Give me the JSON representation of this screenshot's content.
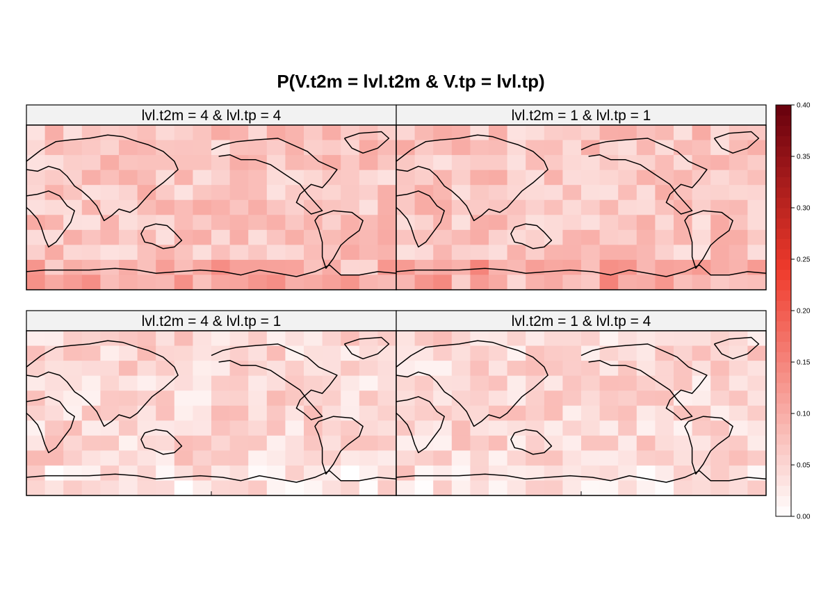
{
  "chart_data": {
    "type": "heatmap",
    "title": "P(V.t2m = lvl.t2m & V.tp = lvl.tp)",
    "xlabel": "",
    "ylabel": "",
    "layout": {
      "columns": 2,
      "rows": 2
    },
    "panels": [
      {
        "name": "lvl.t2m = 4 & lvl.tp = 4",
        "typical_value": 0.07,
        "range": [
          0.0,
          0.2
        ]
      },
      {
        "name": "lvl.t2m = 1 & lvl.tp = 1",
        "typical_value": 0.07,
        "range": [
          0.0,
          0.2
        ]
      },
      {
        "name": "lvl.t2m = 4 & lvl.tp = 1",
        "typical_value": 0.05,
        "range": [
          0.0,
          0.18
        ]
      },
      {
        "name": "lvl.t2m = 1 & lvl.tp = 4",
        "typical_value": 0.05,
        "range": [
          0.0,
          0.2
        ]
      }
    ],
    "colorbar": {
      "range": [
        0.0,
        0.4
      ],
      "ticks": [
        0.0,
        0.05,
        0.1,
        0.15,
        0.2,
        0.25,
        0.3,
        0.35,
        0.4
      ],
      "tick_labels": [
        "0.00",
        "0.05",
        "0.10",
        "0.15",
        "0.20",
        "0.25",
        "0.30",
        "0.35",
        "0.40"
      ],
      "color_low": "#ffffff",
      "color_mid": "#ef3b2c",
      "color_high": "#67000d",
      "placement": "right"
    }
  },
  "colors": {
    "strip_background": "#f2f2f2",
    "coastline": "#000000",
    "panel_border": "#000000"
  }
}
